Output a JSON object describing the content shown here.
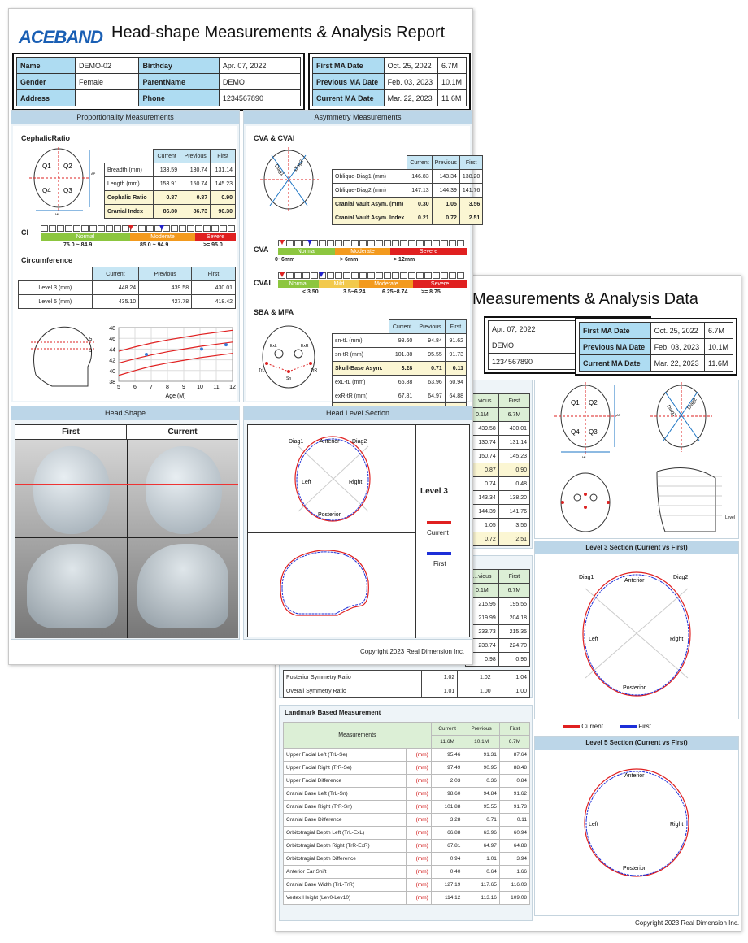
{
  "back": {
    "title": "Measurements & Analysis Data",
    "info": [
      {
        "v1": "Apr. 07, 2022",
        "k2": "First MA Date",
        "v2": "Oct. 25, 2022",
        "v3": "6.7M"
      },
      {
        "v1": "DEMO",
        "k2": "Previous MA Date",
        "v2": "Feb. 03, 2023",
        "v3": "10.1M"
      },
      {
        "v1": "1234567890",
        "k2": "Current MA Date",
        "v2": "Mar. 22, 2023",
        "v3": "11.6M"
      }
    ],
    "table1": {
      "headers": [
        "…vious",
        "First"
      ],
      "ages": [
        "0.1M",
        "6.7M"
      ],
      "rows": [
        [
          "439.58",
          "430.01"
        ],
        [
          "130.74",
          "131.14"
        ],
        [
          "150.74",
          "145.23"
        ],
        [
          "0.87",
          "0.90"
        ],
        [
          "0.74",
          "0.48"
        ],
        [
          "143.34",
          "138.20"
        ],
        [
          "144.39",
          "141.76"
        ],
        [
          "1.05",
          "3.56"
        ],
        [
          "0.72",
          "2.51"
        ]
      ]
    },
    "table2": {
      "headers": [
        "…vious",
        "First"
      ],
      "ages": [
        "0.1M",
        "6.7M"
      ],
      "rows": [
        [
          "215.95",
          "195.55"
        ],
        [
          "219.99",
          "204.18"
        ],
        [
          "233.73",
          "215.35"
        ],
        [
          "238.74",
          "224.70"
        ],
        [
          "0.98",
          "0.96"
        ]
      ]
    },
    "sym_rows": [
      {
        "label": "Posterior Symmetry Ratio",
        "c": "1.02",
        "p": "1.02",
        "f": "1.04"
      },
      {
        "label": "Overall Symmetry Ratio",
        "c": "1.01",
        "p": "1.00",
        "f": "1.00"
      }
    ],
    "landmark": {
      "title": "Landmark Based Measurement",
      "col_meas": "Measurements",
      "col_c": "Current",
      "col_p": "Previous",
      "col_f": "First",
      "age_c": "11.6M",
      "age_p": "10.1M",
      "age_f": "6.7M",
      "rows": [
        {
          "label": "Upper Facial Left (TrL-Se)",
          "u": "(mm)",
          "c": "95.46",
          "p": "91.31",
          "f": "87.64"
        },
        {
          "label": "Upper Facial Right (TrR-Se)",
          "u": "(mm)",
          "c": "97.49",
          "p": "90.95",
          "f": "88.48"
        },
        {
          "label": "Upper Facial Difference",
          "u": "(mm)",
          "c": "2.03",
          "p": "0.36",
          "f": "0.84"
        },
        {
          "label": "Cranial Base Left (TrL-Sn)",
          "u": "(mm)",
          "c": "98.60",
          "p": "94.84",
          "f": "91.62"
        },
        {
          "label": "Cranial Base Right (TrR-Sn)",
          "u": "(mm)",
          "c": "101.88",
          "p": "95.55",
          "f": "91.73"
        },
        {
          "label": "Cranial Base Difference",
          "u": "(mm)",
          "c": "3.28",
          "p": "0.71",
          "f": "0.11"
        },
        {
          "label": "Orbitotragial Depth Left (TrL-ExL)",
          "u": "(mm)",
          "c": "66.88",
          "p": "63.96",
          "f": "60.94"
        },
        {
          "label": "Orbitotragial Depth Right (TrR-ExR)",
          "u": "(mm)",
          "c": "67.81",
          "p": "64.97",
          "f": "64.88"
        },
        {
          "label": "Orbitotragial Depth Difference",
          "u": "(mm)",
          "c": "0.94",
          "p": "1.01",
          "f": "3.94"
        },
        {
          "label": "Anterior Ear Shift",
          "u": "(mm)",
          "c": "0.40",
          "p": "0.64",
          "f": "1.66"
        },
        {
          "label": "Cranial Base Width (TrL-TrR)",
          "u": "(mm)",
          "c": "127.19",
          "p": "117.65",
          "f": "116.03"
        },
        {
          "label": "Vertex Height (Lev0-Lev10)",
          "u": "(mm)",
          "c": "114.12",
          "p": "113.16",
          "f": "109.08"
        }
      ]
    },
    "level3_title": "Level 3 Section (Current vs First)",
    "level5_title": "Level 5 Section (Current vs First)",
    "legend_current": "Current",
    "legend_first": "First",
    "dir": {
      "diag1": "Diag1",
      "diag2": "Diag2",
      "anterior": "Anterior",
      "posterior": "Posterior",
      "left": "Left",
      "right": "Right"
    },
    "head_labels": {
      "q1": "Q1",
      "q2": "Q2",
      "q3": "Q3",
      "q4": "Q4",
      "ap": "AP",
      "ml": "ML",
      "level": "Level",
      "diag1": "Diag1",
      "diag2": "Diag2"
    },
    "copyright": "Copyright 2023 Real Dimension Inc."
  },
  "front": {
    "logo": "ACEBAND",
    "title": "Head-shape Measurements & Analysis Report",
    "info": [
      {
        "k1": "Name",
        "v1": "DEMO-02",
        "k2": "Birthday",
        "v2": "Apr. 07, 2022"
      },
      {
        "k1": "Gender",
        "v1": "Female",
        "k2": "ParentName",
        "v2": "DEMO"
      },
      {
        "k1": "Address",
        "v1": "",
        "k2": "Phone",
        "v2": "1234567890"
      }
    ],
    "ma": [
      {
        "k": "First MA Date",
        "d": "Oct. 25, 2022",
        "m": "6.7M"
      },
      {
        "k": "Previous MA Date",
        "d": "Feb. 03, 2023",
        "m": "10.1M"
      },
      {
        "k": "Current MA Date",
        "d": "Mar. 22, 2023",
        "m": "11.6M"
      }
    ],
    "prop_title": "Proportionality Measurements",
    "asym_title": "Asymmetry Measurements",
    "cephalic": {
      "label": "CephalicRatio",
      "headers": [
        "Current",
        "Previous",
        "First"
      ],
      "rows": [
        {
          "label": "Breadth (mm)",
          "c": "133.59",
          "p": "130.74",
          "f": "131.14",
          "hi": false
        },
        {
          "label": "Length (mm)",
          "c": "153.91",
          "p": "150.74",
          "f": "145.23",
          "hi": false
        },
        {
          "label": "Cephalic Ratio",
          "c": "0.87",
          "p": "0.87",
          "f": "0.90",
          "hi": true
        },
        {
          "label": "Cranial Index",
          "c": "86.80",
          "p": "86.73",
          "f": "90.30",
          "hi": true
        }
      ]
    },
    "ci": {
      "label": "CI",
      "normal": "Normal",
      "moderate": "Moderate",
      "severe": "Severe",
      "r1": "75.0 ~ 84.9",
      "r2": "85.0 ~ 94.9",
      "r3": ">= 95.0"
    },
    "circ": {
      "label": "Circumference",
      "headers": [
        "Current",
        "Previous",
        "First"
      ],
      "rows": [
        {
          "label": "Level 3 (mm)",
          "c": "448.24",
          "p": "439.58",
          "f": "430.01"
        },
        {
          "label": "Level 5 (mm)",
          "c": "435.10",
          "p": "427.78",
          "f": "418.42"
        }
      ]
    },
    "cva": {
      "label": "CVA & CVAI",
      "headers": [
        "Current",
        "Previous",
        "First"
      ],
      "rows": [
        {
          "label": "Oblique-Diag1 (mm)",
          "c": "146.83",
          "p": "143.34",
          "f": "138.20",
          "hi": false
        },
        {
          "label": "Oblique-Diag2 (mm)",
          "c": "147.13",
          "p": "144.39",
          "f": "141.76",
          "hi": false
        },
        {
          "label": "Cranial Vault Asym. (mm)",
          "c": "0.30",
          "p": "1.05",
          "f": "3.56",
          "hi": true
        },
        {
          "label": "Cranial Vault Asym. Index",
          "c": "0.21",
          "p": "0.72",
          "f": "2.51",
          "hi": true
        }
      ]
    },
    "cva_scale": {
      "label": "CVA",
      "normal": "Normal",
      "mild": "Mild",
      "moderate": "Moderate",
      "severe": "Severe",
      "r1": "0~6mm",
      "r2": "> 6mm",
      "r3": "> 12mm"
    },
    "cvai_scale": {
      "label": "CVAI",
      "normal": "Normal",
      "mild": "Mild",
      "moderate": "Moderate",
      "severe": "Severe",
      "r1": "< 3.50",
      "r2": "3.5~6.24",
      "r3": "6.25~8.74",
      "r4": ">= 8.75"
    },
    "sba": {
      "label": "SBA & MFA",
      "headers": [
        "Current",
        "Previous",
        "First"
      ],
      "rows": [
        {
          "label": "sn-tL (mm)",
          "c": "98.60",
          "p": "94.84",
          "f": "91.62",
          "hi": false
        },
        {
          "label": "sn-tR (mm)",
          "c": "101.88",
          "p": "95.55",
          "f": "91.73",
          "hi": false
        },
        {
          "label": "Skull-Base Asym.",
          "c": "3.28",
          "p": "0.71",
          "f": "0.11",
          "hi": true
        },
        {
          "label": "exL-tL (mm)",
          "c": "66.88",
          "p": "63.96",
          "f": "60.94",
          "hi": false
        },
        {
          "label": "exR-tR (mm)",
          "c": "67.81",
          "p": "64.97",
          "f": "64.88",
          "hi": false
        },
        {
          "label": "Mid-Face Asym.",
          "c": "0.94",
          "p": "1.01",
          "f": "3.94",
          "hi": true
        }
      ]
    },
    "growth_chart": {
      "type": "line",
      "xlabel": "Age (M)",
      "ylabel": "",
      "xlim": [
        5,
        12
      ],
      "ylim": [
        38,
        48
      ],
      "xticks": [
        5,
        6,
        7,
        8,
        9,
        10,
        11,
        12
      ],
      "yticks": [
        38,
        40,
        42,
        44,
        46,
        48
      ],
      "curves": [
        {
          "x": [
            5,
            6,
            7,
            8,
            9,
            10,
            11,
            12
          ],
          "y": [
            41.4,
            42.2,
            42.9,
            43.5,
            44.0,
            44.5,
            44.9,
            45.3
          ]
        },
        {
          "x": [
            5,
            6,
            7,
            8,
            9,
            10,
            11,
            12
          ],
          "y": [
            39.1,
            40.0,
            40.8,
            41.4,
            41.9,
            42.4,
            42.8,
            43.2
          ]
        },
        {
          "x": [
            5,
            6,
            7,
            8,
            9,
            10,
            11,
            12
          ],
          "y": [
            43.6,
            44.4,
            45.1,
            45.7,
            46.2,
            46.7,
            47.1,
            47.5
          ]
        }
      ],
      "points": [
        {
          "x": 6.7,
          "y": 43.0
        },
        {
          "x": 10.1,
          "y": 44.0
        },
        {
          "x": 11.6,
          "y": 44.8
        }
      ]
    },
    "headshape_title": "Head Shape",
    "headshape_first": "First",
    "headshape_current": "Current",
    "levelsec_title": "Head Level Section",
    "level_label": "Level 3",
    "legend_current": "Current",
    "legend_first": "First",
    "dir": {
      "diag1": "Diag1",
      "diag2": "Diag2",
      "anterior": "Anterior",
      "posterior": "Posterior",
      "left": "Left",
      "right": "Right"
    },
    "head_labels": {
      "q1": "Q1",
      "q2": "Q2",
      "q3": "Q3",
      "q4": "Q4",
      "ap": "AP",
      "ml": "ML",
      "diag1": "Diag1",
      "diag2": "Diag2"
    },
    "level_marks": {
      "l5": "5",
      "l3": "3"
    },
    "face_labels": {
      "exl": "ExL",
      "exr": "ExR",
      "trl": "TrL",
      "trr": "TrR",
      "sn": "Sn"
    },
    "copyright": "Copyright 2023 Real Dimension Inc."
  },
  "colors": {
    "current": "#e02020",
    "first": "#1d2fd8",
    "accent": "#aedcf2",
    "normal": "#8cc63f",
    "moderate": "#f39a1e",
    "severe": "#e02020"
  }
}
